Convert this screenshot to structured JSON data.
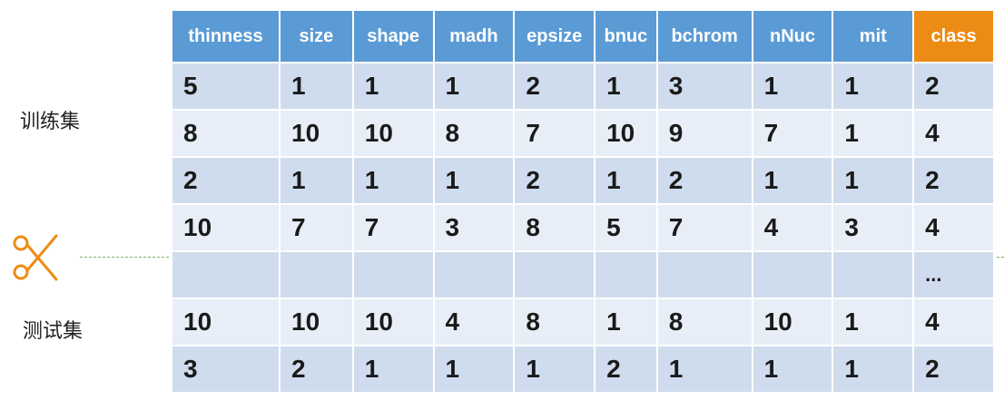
{
  "labels": {
    "train": "训练集",
    "test": "测试集"
  },
  "columns": [
    "thinness",
    "size",
    "shape",
    "madh",
    "epsize",
    "bnuc",
    "bchrom",
    "nNuc",
    "mit",
    "class"
  ],
  "rows": [
    [
      "5",
      "1",
      "1",
      "1",
      "2",
      "1",
      "3",
      "1",
      "1",
      "2"
    ],
    [
      "8",
      "10",
      "10",
      "8",
      "7",
      "10",
      "9",
      "7",
      "1",
      "4"
    ],
    [
      "2",
      "1",
      "1",
      "1",
      "2",
      "1",
      "2",
      "1",
      "1",
      "2"
    ],
    [
      "10",
      "7",
      "7",
      "3",
      "8",
      "5",
      "7",
      "4",
      "3",
      "4"
    ],
    [
      "",
      "",
      "",
      "",
      "",
      "",
      "",
      "",
      "",
      "..."
    ],
    [
      "10",
      "10",
      "10",
      "4",
      "8",
      "1",
      "8",
      "10",
      "1",
      "4"
    ],
    [
      "3",
      "2",
      "1",
      "1",
      "1",
      "2",
      "1",
      "1",
      "1",
      "2"
    ]
  ],
  "colors": {
    "header": "#5b9bd5",
    "class_header": "#ed8c14",
    "row_dark": "#cfdcee",
    "row_light": "#e8eef7",
    "scissors": "#ed8c14",
    "cut_line": "#7fb069"
  },
  "icons": {
    "cut_marker": "scissors-icon"
  }
}
